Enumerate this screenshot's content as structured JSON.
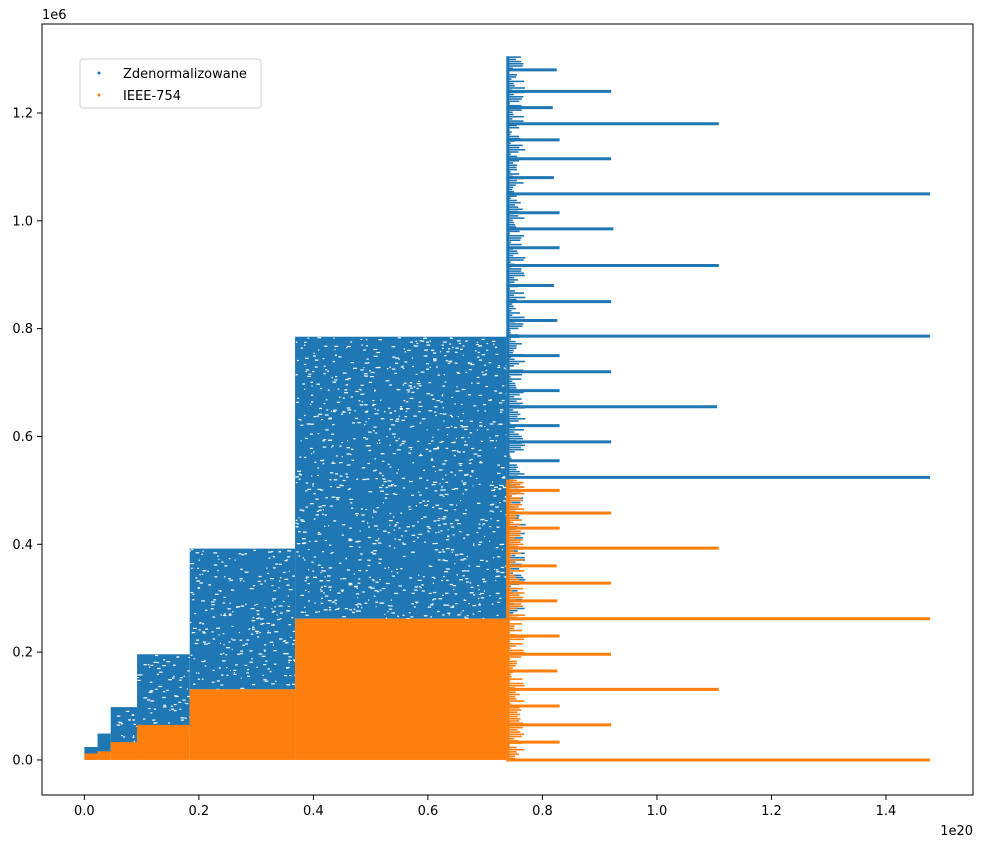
{
  "chart_data": {
    "type": "scatter",
    "title": "",
    "xlabel": "",
    "ylabel": "",
    "x_offset_label": "1e20",
    "y_offset_label": "1e6",
    "xlim": [
      -0.074,
      1.552
    ],
    "ylim": [
      -0.065,
      1.365
    ],
    "x_ticks": [
      0.0,
      0.2,
      0.4,
      0.6,
      0.8,
      1.0,
      1.2,
      1.4
    ],
    "x_tick_labels": [
      "0.0",
      "0.2",
      "0.4",
      "0.6",
      "0.8",
      "1.0",
      "1.2",
      "1.4"
    ],
    "y_ticks": [
      0.0,
      0.2,
      0.4,
      0.6,
      0.8,
      1.0,
      1.2
    ],
    "y_tick_labels": [
      "0.0",
      "0.2",
      "0.4",
      "0.6",
      "0.8",
      "1.0",
      "1.2"
    ],
    "grid": false,
    "legend_position": "upper-left",
    "series": [
      {
        "name": "Zdenormalizowane",
        "color": "#1f77b4",
        "marker": "dot",
        "blocks": [
          {
            "x": [
              0.0,
              0.023
            ],
            "y": [
              0.0,
              0.024
            ]
          },
          {
            "x": [
              0.023,
              0.046
            ],
            "y": [
              0.012,
              0.049
            ]
          },
          {
            "x": [
              0.046,
              0.092
            ],
            "y": [
              0.024,
              0.098
            ]
          },
          {
            "x": [
              0.092,
              0.184
            ],
            "y": [
              0.049,
              0.196
            ]
          },
          {
            "x": [
              0.184,
              0.368
            ],
            "y": [
              0.131,
              0.392
            ]
          },
          {
            "x": [
              0.368,
              0.737
            ],
            "y": [
              0.262,
              0.785
            ]
          }
        ],
        "scatter_band": {
          "x": [
            0.737,
            0.755
          ],
          "y": [
            0.262,
            1.305
          ]
        },
        "horizontal_lines": [
          {
            "y": 1.28,
            "x_end": 0.825
          },
          {
            "y": 1.24,
            "x_end": 0.92
          },
          {
            "y": 1.21,
            "x_end": 0.818
          },
          {
            "y": 1.18,
            "x_end": 1.108
          },
          {
            "y": 1.15,
            "x_end": 0.83
          },
          {
            "y": 1.115,
            "x_end": 0.92
          },
          {
            "y": 1.08,
            "x_end": 0.82
          },
          {
            "y": 1.05,
            "x_end": 1.477
          },
          {
            "y": 1.015,
            "x_end": 0.83
          },
          {
            "y": 0.985,
            "x_end": 0.924
          },
          {
            "y": 0.95,
            "x_end": 0.83
          },
          {
            "y": 0.917,
            "x_end": 1.108
          },
          {
            "y": 0.88,
            "x_end": 0.82
          },
          {
            "y": 0.85,
            "x_end": 0.92
          },
          {
            "y": 0.815,
            "x_end": 0.826
          },
          {
            "y": 0.786,
            "x_end": 1.477
          },
          {
            "y": 0.75,
            "x_end": 0.83
          },
          {
            "y": 0.72,
            "x_end": 0.92
          },
          {
            "y": 0.685,
            "x_end": 0.83
          },
          {
            "y": 0.655,
            "x_end": 1.105
          },
          {
            "y": 0.62,
            "x_end": 0.83
          },
          {
            "y": 0.59,
            "x_end": 0.92
          },
          {
            "y": 0.555,
            "x_end": 0.83
          },
          {
            "y": 0.524,
            "x_end": 1.477
          }
        ]
      },
      {
        "name": "IEEE-754",
        "color": "#ff7f0e",
        "marker": "dot",
        "blocks": [
          {
            "x": [
              0.0,
              0.023
            ],
            "y": [
              0.0,
              0.012
            ]
          },
          {
            "x": [
              0.023,
              0.046
            ],
            "y": [
              0.0,
              0.016
            ]
          },
          {
            "x": [
              0.046,
              0.092
            ],
            "y": [
              0.0,
              0.033
            ]
          },
          {
            "x": [
              0.092,
              0.184
            ],
            "y": [
              0.0,
              0.065
            ]
          },
          {
            "x": [
              0.184,
              0.368
            ],
            "y": [
              0.0,
              0.131
            ]
          },
          {
            "x": [
              0.368,
              0.737
            ],
            "y": [
              0.0,
              0.262
            ]
          }
        ],
        "scatter_band": {
          "x": [
            0.737,
            0.755
          ],
          "y": [
            0.0,
            0.52
          ]
        },
        "horizontal_lines": [
          {
            "y": 0.5,
            "x_end": 0.83
          },
          {
            "y": 0.458,
            "x_end": 0.92
          },
          {
            "y": 0.43,
            "x_end": 0.83
          },
          {
            "y": 0.393,
            "x_end": 1.108
          },
          {
            "y": 0.36,
            "x_end": 0.825
          },
          {
            "y": 0.328,
            "x_end": 0.92
          },
          {
            "y": 0.295,
            "x_end": 0.826
          },
          {
            "y": 0.262,
            "x_end": 1.477
          },
          {
            "y": 0.23,
            "x_end": 0.83
          },
          {
            "y": 0.196,
            "x_end": 0.92
          },
          {
            "y": 0.165,
            "x_end": 0.826
          },
          {
            "y": 0.131,
            "x_end": 1.108
          },
          {
            "y": 0.1,
            "x_end": 0.83
          },
          {
            "y": 0.065,
            "x_end": 0.92
          },
          {
            "y": 0.033,
            "x_end": 0.83
          },
          {
            "y": 0.0,
            "x_end": 1.477
          }
        ]
      }
    ]
  }
}
